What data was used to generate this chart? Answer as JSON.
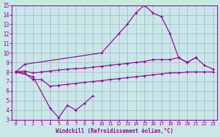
{
  "xlabel": "Windchill (Refroidissement éolien,°C)",
  "color": "#990099",
  "bg_color": "#c8e8e8",
  "grid_color": "#aaaacc",
  "ylim": [
    3,
    15
  ],
  "xlim": [
    -0.5,
    23.5
  ],
  "yticks": [
    3,
    4,
    5,
    6,
    7,
    8,
    9,
    10,
    11,
    12,
    13,
    14,
    15
  ],
  "xticks": [
    0,
    1,
    2,
    3,
    4,
    5,
    6,
    7,
    8,
    9,
    10,
    11,
    12,
    13,
    14,
    15,
    16,
    17,
    18,
    19,
    20,
    21,
    22,
    23
  ],
  "line_top_x": [
    0,
    1,
    10,
    12,
    13,
    14,
    15,
    16,
    17,
    18,
    19,
    20,
    21
  ],
  "line_top_y": [
    8.0,
    8.8,
    10.0,
    12.0,
    13.0,
    14.2,
    15.0,
    14.2,
    13.8,
    12.0,
    9.5,
    9.0,
    9.5
  ],
  "line_bot_x": [
    0,
    2,
    4,
    5,
    6,
    7,
    8,
    9
  ],
  "line_bot_y": [
    8.0,
    7.5,
    4.2,
    3.2,
    4.5,
    4.0,
    4.7,
    5.5
  ],
  "line_mid1_x": [
    0,
    1,
    2,
    3,
    4,
    5,
    6,
    7,
    8,
    9,
    10,
    11,
    12,
    13,
    14,
    15,
    16,
    17,
    18,
    19,
    20,
    21,
    22,
    23
  ],
  "line_mid1_y": [
    8.0,
    8.1,
    7.9,
    8.0,
    8.1,
    8.2,
    8.3,
    8.35,
    8.4,
    8.5,
    8.6,
    8.7,
    8.8,
    8.9,
    9.0,
    9.1,
    9.3,
    9.3,
    9.3,
    9.5,
    9.0,
    9.5,
    8.7,
    8.3
  ],
  "line_mid2_x": [
    0,
    1,
    2,
    3,
    4,
    5,
    6,
    7,
    8,
    9,
    10,
    11,
    12,
    13,
    14,
    15,
    16,
    17,
    18,
    19,
    20,
    21,
    22,
    23
  ],
  "line_mid2_y": [
    8.0,
    7.9,
    7.2,
    7.2,
    6.5,
    6.6,
    6.7,
    6.8,
    6.9,
    7.0,
    7.1,
    7.2,
    7.3,
    7.4,
    7.5,
    7.6,
    7.7,
    7.8,
    7.9,
    7.9,
    8.0,
    8.0,
    8.0,
    8.0
  ]
}
